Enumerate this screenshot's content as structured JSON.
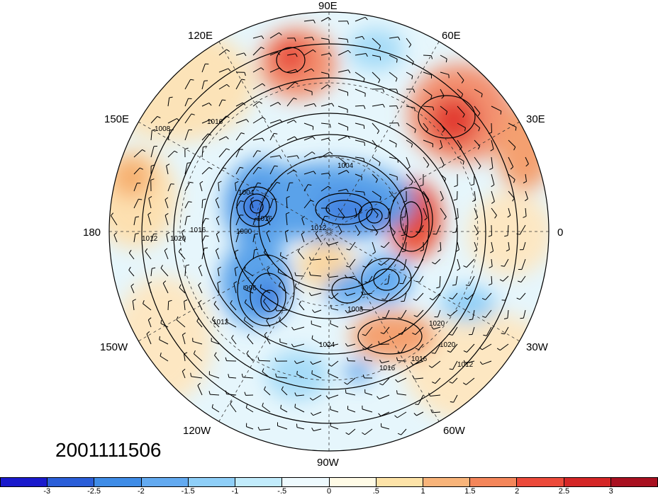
{
  "timestamp": "2001111506",
  "longitude_labels": [
    {
      "text": "90E",
      "name": "lon-label-90e"
    },
    {
      "text": "60E",
      "name": "lon-label-60e"
    },
    {
      "text": "120E",
      "name": "lon-label-120e"
    },
    {
      "text": "30E",
      "name": "lon-label-30e"
    },
    {
      "text": "150E",
      "name": "lon-label-150e"
    },
    {
      "text": "180",
      "name": "lon-label-180"
    },
    {
      "text": "0",
      "name": "lon-label-0"
    },
    {
      "text": "150W",
      "name": "lon-label-150w"
    },
    {
      "text": "30W",
      "name": "lon-label-30w"
    },
    {
      "text": "120W",
      "name": "lon-label-120w"
    },
    {
      "text": "60W",
      "name": "lon-label-60w"
    },
    {
      "text": "90W",
      "name": "lon-label-90w"
    }
  ],
  "colorbar": {
    "colors": [
      "#1a1acc",
      "#2a5ed8",
      "#3f8ce6",
      "#63aaf0",
      "#8fcff8",
      "#c2ecfc",
      "#eefafe",
      "#fffbe6",
      "#fde3a8",
      "#f8b47a",
      "#f4865a",
      "#ec4a3a",
      "#d42626",
      "#a81020"
    ],
    "tick_labels": [
      "-3",
      "-2.5",
      "-2",
      "-1.5",
      "-1",
      "-.5",
      "0",
      ".5",
      "1",
      "1.5",
      "2",
      "2.5",
      "3"
    ]
  },
  "contour_labels": [
    "1008",
    "1016",
    "1012",
    "1020",
    "1004",
    "1000",
    "1012",
    "1016",
    "1020",
    "996",
    "1012",
    "1008",
    "1016",
    "1016",
    "1012",
    "1020",
    "1024",
    "1016",
    "1004"
  ]
}
